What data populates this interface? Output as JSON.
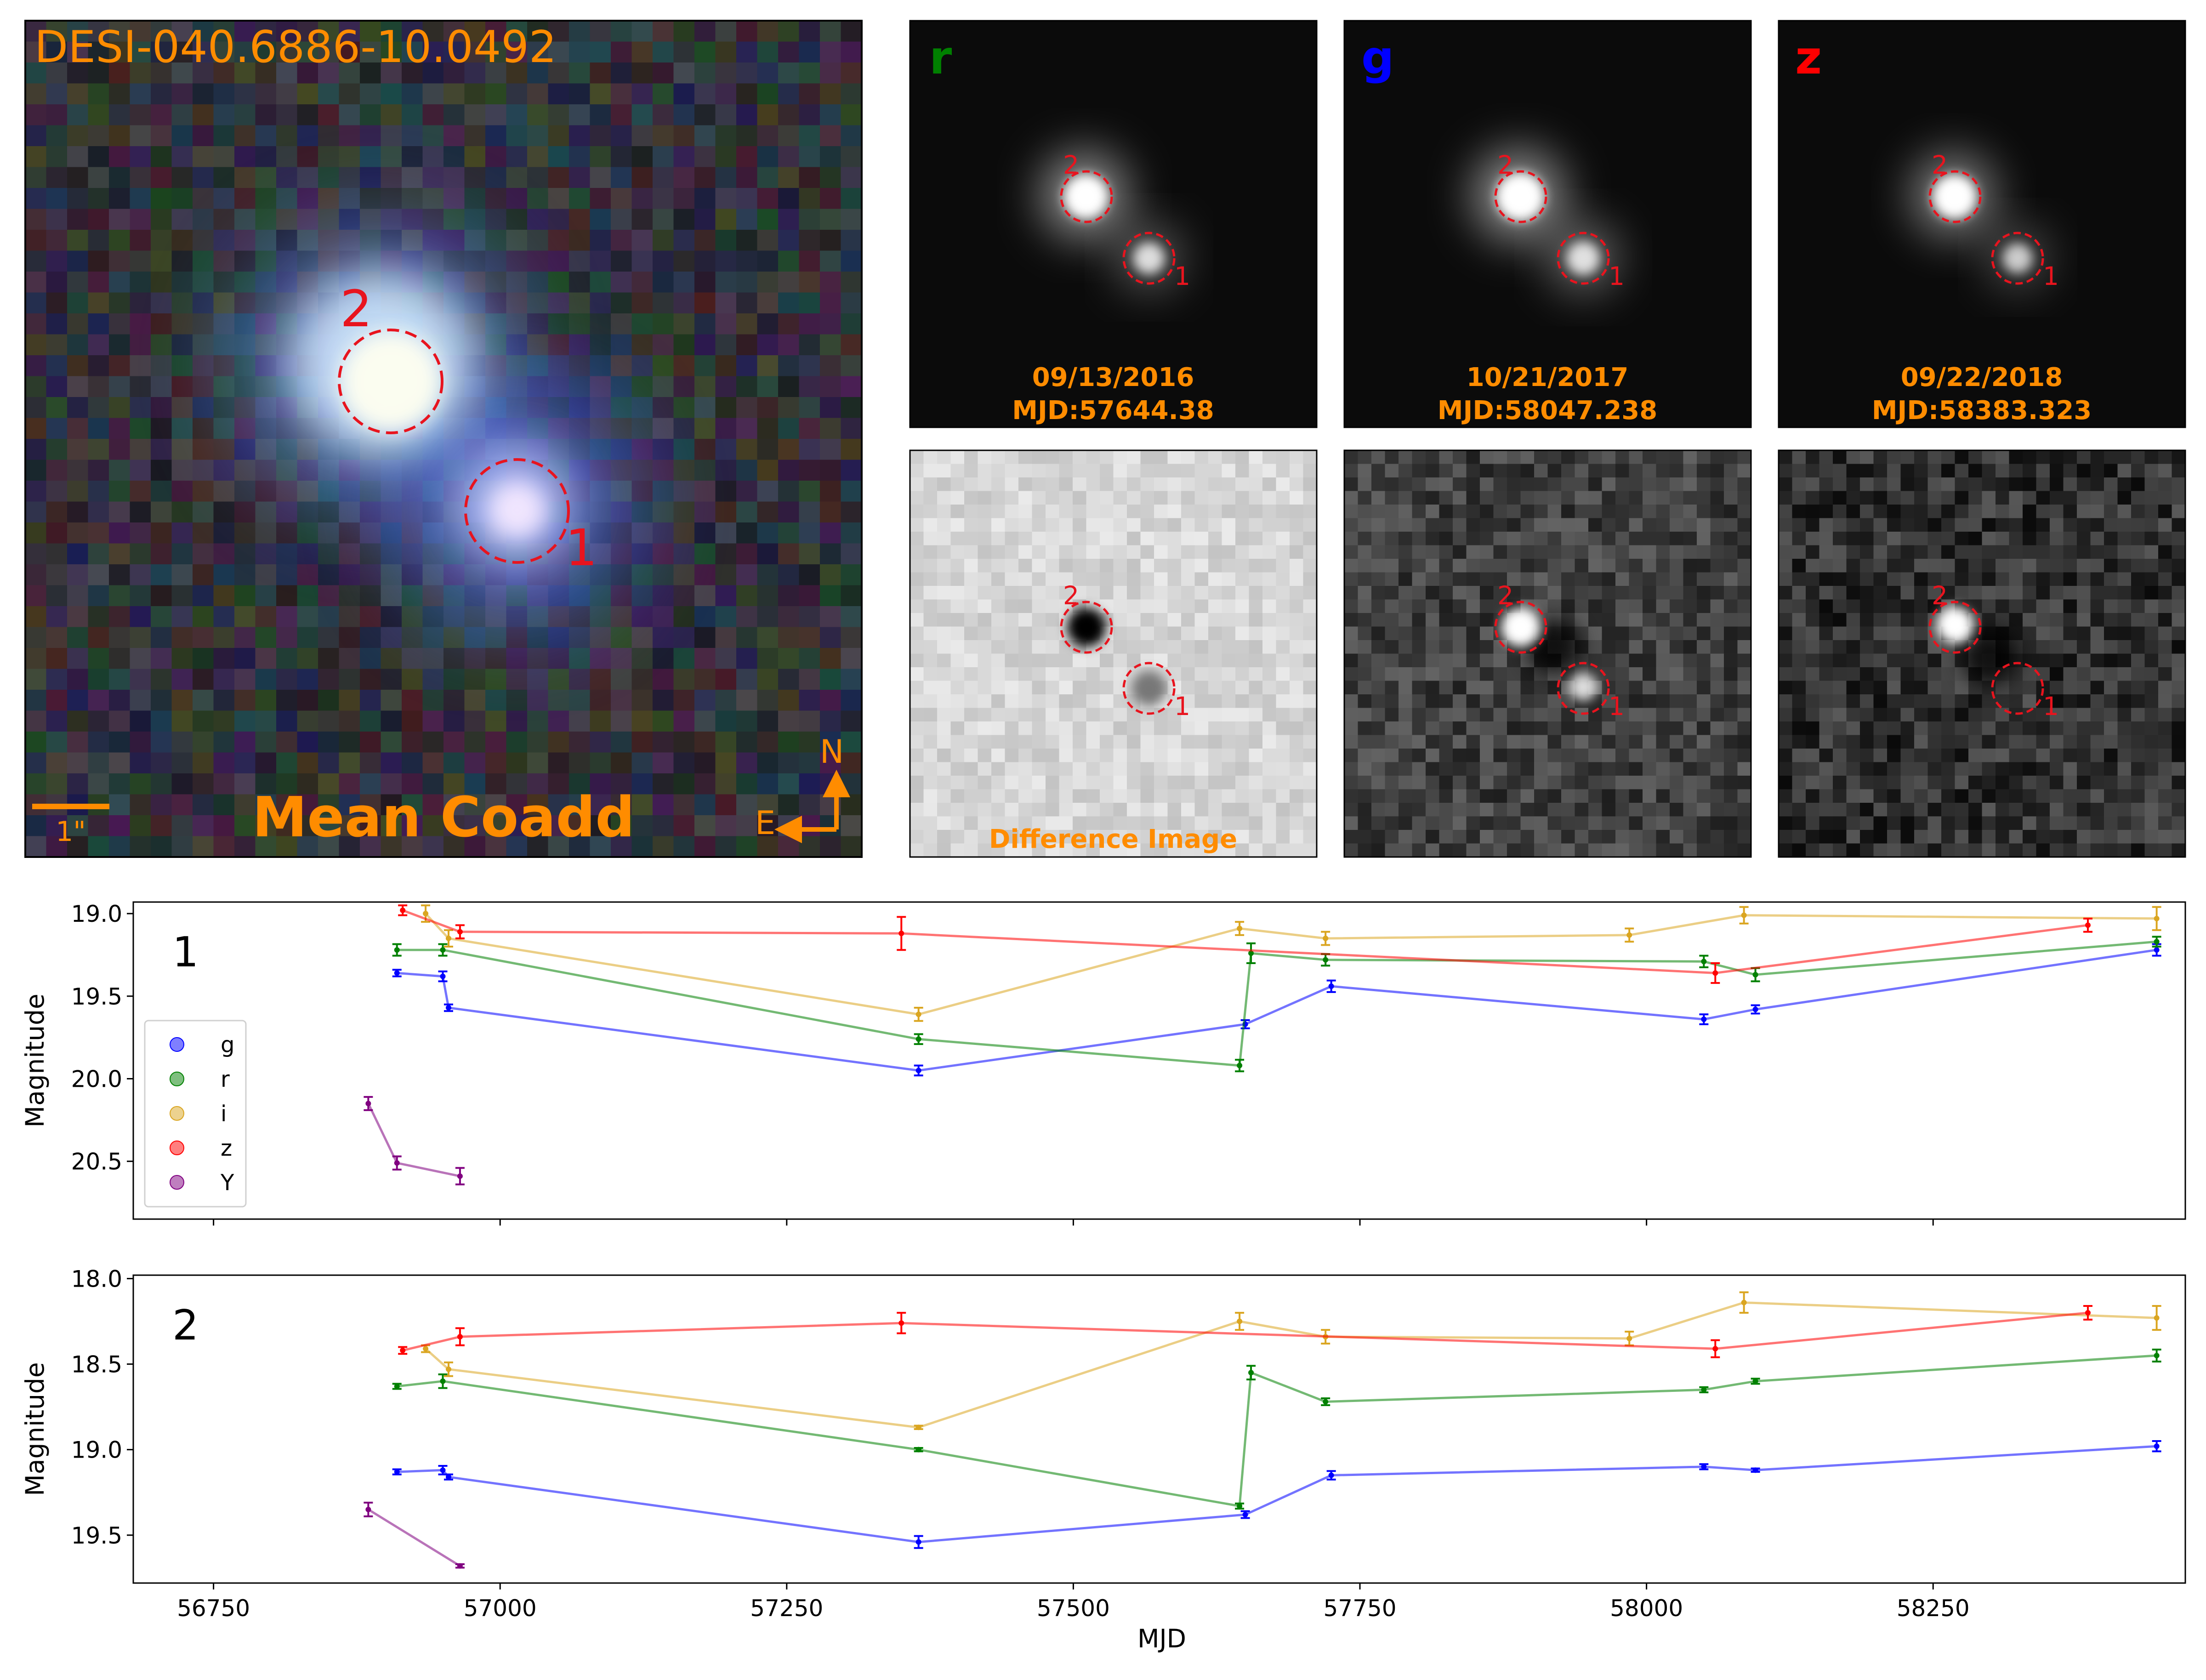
{
  "header": {
    "object_name": "DESI-040.6886-10.0492",
    "coadd_label": "Mean Coadd",
    "scale_bar_label": "1\"",
    "compass_north": "N",
    "compass_east": "E",
    "difference_label": "Difference Image"
  },
  "colors": {
    "accent_orange": "#ff8c00",
    "marker_red": "#e8141e",
    "band_g": "#0000ff",
    "band_r": "#008000",
    "band_i": "#daa520",
    "band_z": "#ff0000",
    "band_Y": "#800080"
  },
  "epochs": [
    {
      "band": "r",
      "band_color": "#008000",
      "date": "09/13/2016",
      "mjd": "MJD:57644.38"
    },
    {
      "band": "g",
      "band_color": "#0000ff",
      "date": "10/21/2017",
      "mjd": "MJD:58047.238"
    },
    {
      "band": "z",
      "band_color": "#ff0000",
      "date": "09/22/2018",
      "mjd": "MJD:58383.323"
    }
  ],
  "source_labels": [
    "1",
    "2"
  ],
  "chart_data": [
    {
      "type": "line",
      "panel_label": "1",
      "xlabel": "",
      "ylabel": "Magnitude",
      "xlim": [
        56680,
        58470
      ],
      "ylim": [
        20.85,
        18.93
      ],
      "y_inverted": true,
      "y_ticks": [
        "19.0",
        "19.5",
        "20.0",
        "20.5"
      ],
      "legend": {
        "placement": "lower-left",
        "entries": [
          "g",
          "r",
          "i",
          "z",
          "Y"
        ]
      },
      "series": [
        {
          "name": "g",
          "color": "#0000ff",
          "points": [
            [
              56910,
              19.36,
              0.02
            ],
            [
              56950,
              19.38,
              0.03
            ],
            [
              56955,
              19.57,
              0.02
            ],
            [
              57365,
              19.95,
              0.03
            ],
            [
              57650,
              19.67,
              0.025
            ],
            [
              57725,
              19.44,
              0.035
            ],
            [
              58050,
              19.64,
              0.03
            ],
            [
              58095,
              19.58,
              0.025
            ],
            [
              58445,
              19.22,
              0.035
            ]
          ]
        },
        {
          "name": "r",
          "color": "#008000",
          "points": [
            [
              56910,
              19.22,
              0.035
            ],
            [
              56950,
              19.22,
              0.035
            ],
            [
              57365,
              19.76,
              0.03
            ],
            [
              57645,
              19.92,
              0.035
            ],
            [
              57655,
              19.24,
              0.06
            ],
            [
              57720,
              19.28,
              0.035
            ],
            [
              58050,
              19.29,
              0.035
            ],
            [
              58095,
              19.37,
              0.04
            ],
            [
              58445,
              19.17,
              0.03
            ]
          ]
        },
        {
          "name": "i",
          "color": "#daa520",
          "points": [
            [
              56935,
              19.0,
              0.05
            ],
            [
              56955,
              19.15,
              0.05
            ],
            [
              57365,
              19.61,
              0.04
            ],
            [
              57645,
              19.09,
              0.04
            ],
            [
              57720,
              19.15,
              0.04
            ],
            [
              57985,
              19.13,
              0.04
            ],
            [
              58085,
              19.01,
              0.05
            ],
            [
              58445,
              19.03,
              0.07
            ]
          ]
        },
        {
          "name": "z",
          "color": "#ff0000",
          "points": [
            [
              56915,
              18.98,
              0.03
            ],
            [
              56965,
              19.11,
              0.04
            ],
            [
              57350,
              19.12,
              0.1
            ],
            [
              58060,
              19.36,
              0.06
            ],
            [
              58385,
              19.07,
              0.04
            ]
          ]
        },
        {
          "name": "Y",
          "color": "#800080",
          "points": [
            [
              56885,
              20.15,
              0.04
            ],
            [
              56910,
              20.51,
              0.04
            ],
            [
              56965,
              20.59,
              0.05
            ]
          ]
        }
      ]
    },
    {
      "type": "line",
      "panel_label": "2",
      "xlabel": "MJD",
      "ylabel": "Magnitude",
      "xlim": [
        56680,
        58470
      ],
      "ylim": [
        19.78,
        17.98
      ],
      "y_inverted": true,
      "x_ticks": [
        "56750",
        "57000",
        "57250",
        "57500",
        "57750",
        "58000",
        "58250"
      ],
      "y_ticks": [
        "18.0",
        "18.5",
        "19.0",
        "19.5"
      ],
      "series": [
        {
          "name": "g",
          "color": "#0000ff",
          "points": [
            [
              56910,
              19.13,
              0.015
            ],
            [
              56950,
              19.12,
              0.025
            ],
            [
              56955,
              19.16,
              0.015
            ],
            [
              57365,
              19.54,
              0.035
            ],
            [
              57650,
              19.38,
              0.02
            ],
            [
              57725,
              19.15,
              0.025
            ],
            [
              58050,
              19.1,
              0.015
            ],
            [
              58095,
              19.12,
              0.01
            ],
            [
              58445,
              18.98,
              0.03
            ]
          ]
        },
        {
          "name": "r",
          "color": "#008000",
          "points": [
            [
              56910,
              18.63,
              0.015
            ],
            [
              56950,
              18.6,
              0.04
            ],
            [
              57365,
              19.0,
              0.01
            ],
            [
              57645,
              19.33,
              0.015
            ],
            [
              57655,
              18.55,
              0.04
            ],
            [
              57720,
              18.72,
              0.02
            ],
            [
              58050,
              18.65,
              0.015
            ],
            [
              58095,
              18.6,
              0.015
            ],
            [
              58445,
              18.45,
              0.035
            ]
          ]
        },
        {
          "name": "i",
          "color": "#daa520",
          "points": [
            [
              56935,
              18.41,
              0.02
            ],
            [
              56955,
              18.53,
              0.04
            ],
            [
              57365,
              18.87,
              0.01
            ],
            [
              57645,
              18.25,
              0.05
            ],
            [
              57720,
              18.34,
              0.04
            ],
            [
              57985,
              18.35,
              0.04
            ],
            [
              58085,
              18.14,
              0.06
            ],
            [
              58445,
              18.23,
              0.07
            ]
          ]
        },
        {
          "name": "z",
          "color": "#ff0000",
          "points": [
            [
              56915,
              18.42,
              0.02
            ],
            [
              56965,
              18.34,
              0.05
            ],
            [
              57350,
              18.26,
              0.06
            ],
            [
              58060,
              18.41,
              0.05
            ],
            [
              58385,
              18.2,
              0.04
            ]
          ]
        },
        {
          "name": "Y",
          "color": "#800080",
          "points": [
            [
              56885,
              19.35,
              0.04
            ],
            [
              56965,
              19.68,
              0.01
            ]
          ]
        }
      ]
    }
  ]
}
